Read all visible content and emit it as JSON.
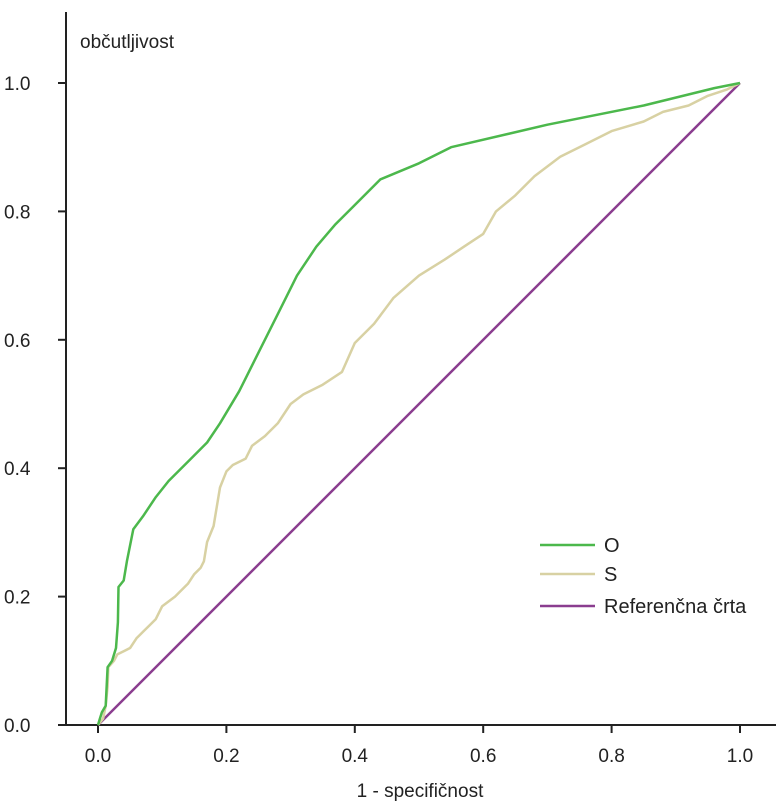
{
  "chart_data": {
    "type": "line",
    "xlabel": "1 - specifičnost",
    "ylabel": "občutljivost",
    "xlim": [
      0,
      1
    ],
    "ylim": [
      0,
      1
    ],
    "x_ticks": [
      "0.0",
      "0.2",
      "0.4",
      "0.6",
      "0.8",
      "1.0"
    ],
    "y_ticks": [
      "0.0",
      "0.2",
      "0.4",
      "0.6",
      "0.8",
      "1.0"
    ],
    "grid": false,
    "legend_position": "bottom-right",
    "series": [
      {
        "name": "O",
        "color": "#4cb84c",
        "points": [
          [
            0,
            0
          ],
          [
            0.003,
            0.01
          ],
          [
            0.006,
            0.02
          ],
          [
            0.012,
            0.03
          ],
          [
            0.015,
            0.09
          ],
          [
            0.022,
            0.1
          ],
          [
            0.028,
            0.12
          ],
          [
            0.031,
            0.16
          ],
          [
            0.032,
            0.215
          ],
          [
            0.04,
            0.225
          ],
          [
            0.045,
            0.255
          ],
          [
            0.055,
            0.305
          ],
          [
            0.07,
            0.325
          ],
          [
            0.09,
            0.355
          ],
          [
            0.11,
            0.38
          ],
          [
            0.14,
            0.41
          ],
          [
            0.17,
            0.44
          ],
          [
            0.19,
            0.47
          ],
          [
            0.22,
            0.52
          ],
          [
            0.25,
            0.58
          ],
          [
            0.28,
            0.64
          ],
          [
            0.31,
            0.7
          ],
          [
            0.34,
            0.745
          ],
          [
            0.37,
            0.78
          ],
          [
            0.4,
            0.81
          ],
          [
            0.44,
            0.85
          ],
          [
            0.5,
            0.875
          ],
          [
            0.55,
            0.9
          ],
          [
            0.7,
            0.935
          ],
          [
            0.85,
            0.965
          ],
          [
            0.96,
            0.992
          ],
          [
            1,
            1
          ]
        ]
      },
      {
        "name": "S",
        "color": "#d8d1a3",
        "points": [
          [
            0,
            0
          ],
          [
            0.008,
            0.01
          ],
          [
            0.012,
            0.03
          ],
          [
            0.015,
            0.06
          ],
          [
            0.016,
            0.09
          ],
          [
            0.025,
            0.1
          ],
          [
            0.03,
            0.11
          ],
          [
            0.04,
            0.115
          ],
          [
            0.05,
            0.12
          ],
          [
            0.06,
            0.135
          ],
          [
            0.07,
            0.145
          ],
          [
            0.08,
            0.155
          ],
          [
            0.09,
            0.165
          ],
          [
            0.1,
            0.185
          ],
          [
            0.12,
            0.2
          ],
          [
            0.14,
            0.22
          ],
          [
            0.15,
            0.235
          ],
          [
            0.16,
            0.245
          ],
          [
            0.165,
            0.255
          ],
          [
            0.17,
            0.285
          ],
          [
            0.18,
            0.31
          ],
          [
            0.185,
            0.34
          ],
          [
            0.19,
            0.37
          ],
          [
            0.2,
            0.395
          ],
          [
            0.21,
            0.405
          ],
          [
            0.23,
            0.415
          ],
          [
            0.24,
            0.435
          ],
          [
            0.26,
            0.45
          ],
          [
            0.28,
            0.47
          ],
          [
            0.3,
            0.5
          ],
          [
            0.32,
            0.515
          ],
          [
            0.35,
            0.53
          ],
          [
            0.38,
            0.55
          ],
          [
            0.4,
            0.595
          ],
          [
            0.43,
            0.625
          ],
          [
            0.46,
            0.665
          ],
          [
            0.5,
            0.7
          ],
          [
            0.54,
            0.725
          ],
          [
            0.57,
            0.745
          ],
          [
            0.6,
            0.765
          ],
          [
            0.62,
            0.8
          ],
          [
            0.65,
            0.825
          ],
          [
            0.68,
            0.855
          ],
          [
            0.72,
            0.885
          ],
          [
            0.76,
            0.905
          ],
          [
            0.8,
            0.925
          ],
          [
            0.85,
            0.94
          ],
          [
            0.88,
            0.955
          ],
          [
            0.92,
            0.965
          ],
          [
            0.95,
            0.98
          ],
          [
            0.98,
            0.99
          ],
          [
            1,
            1
          ]
        ]
      },
      {
        "name": "Referenčna črta",
        "color": "#8a3d8f",
        "points": [
          [
            0,
            0
          ],
          [
            1,
            1
          ]
        ]
      }
    ]
  }
}
